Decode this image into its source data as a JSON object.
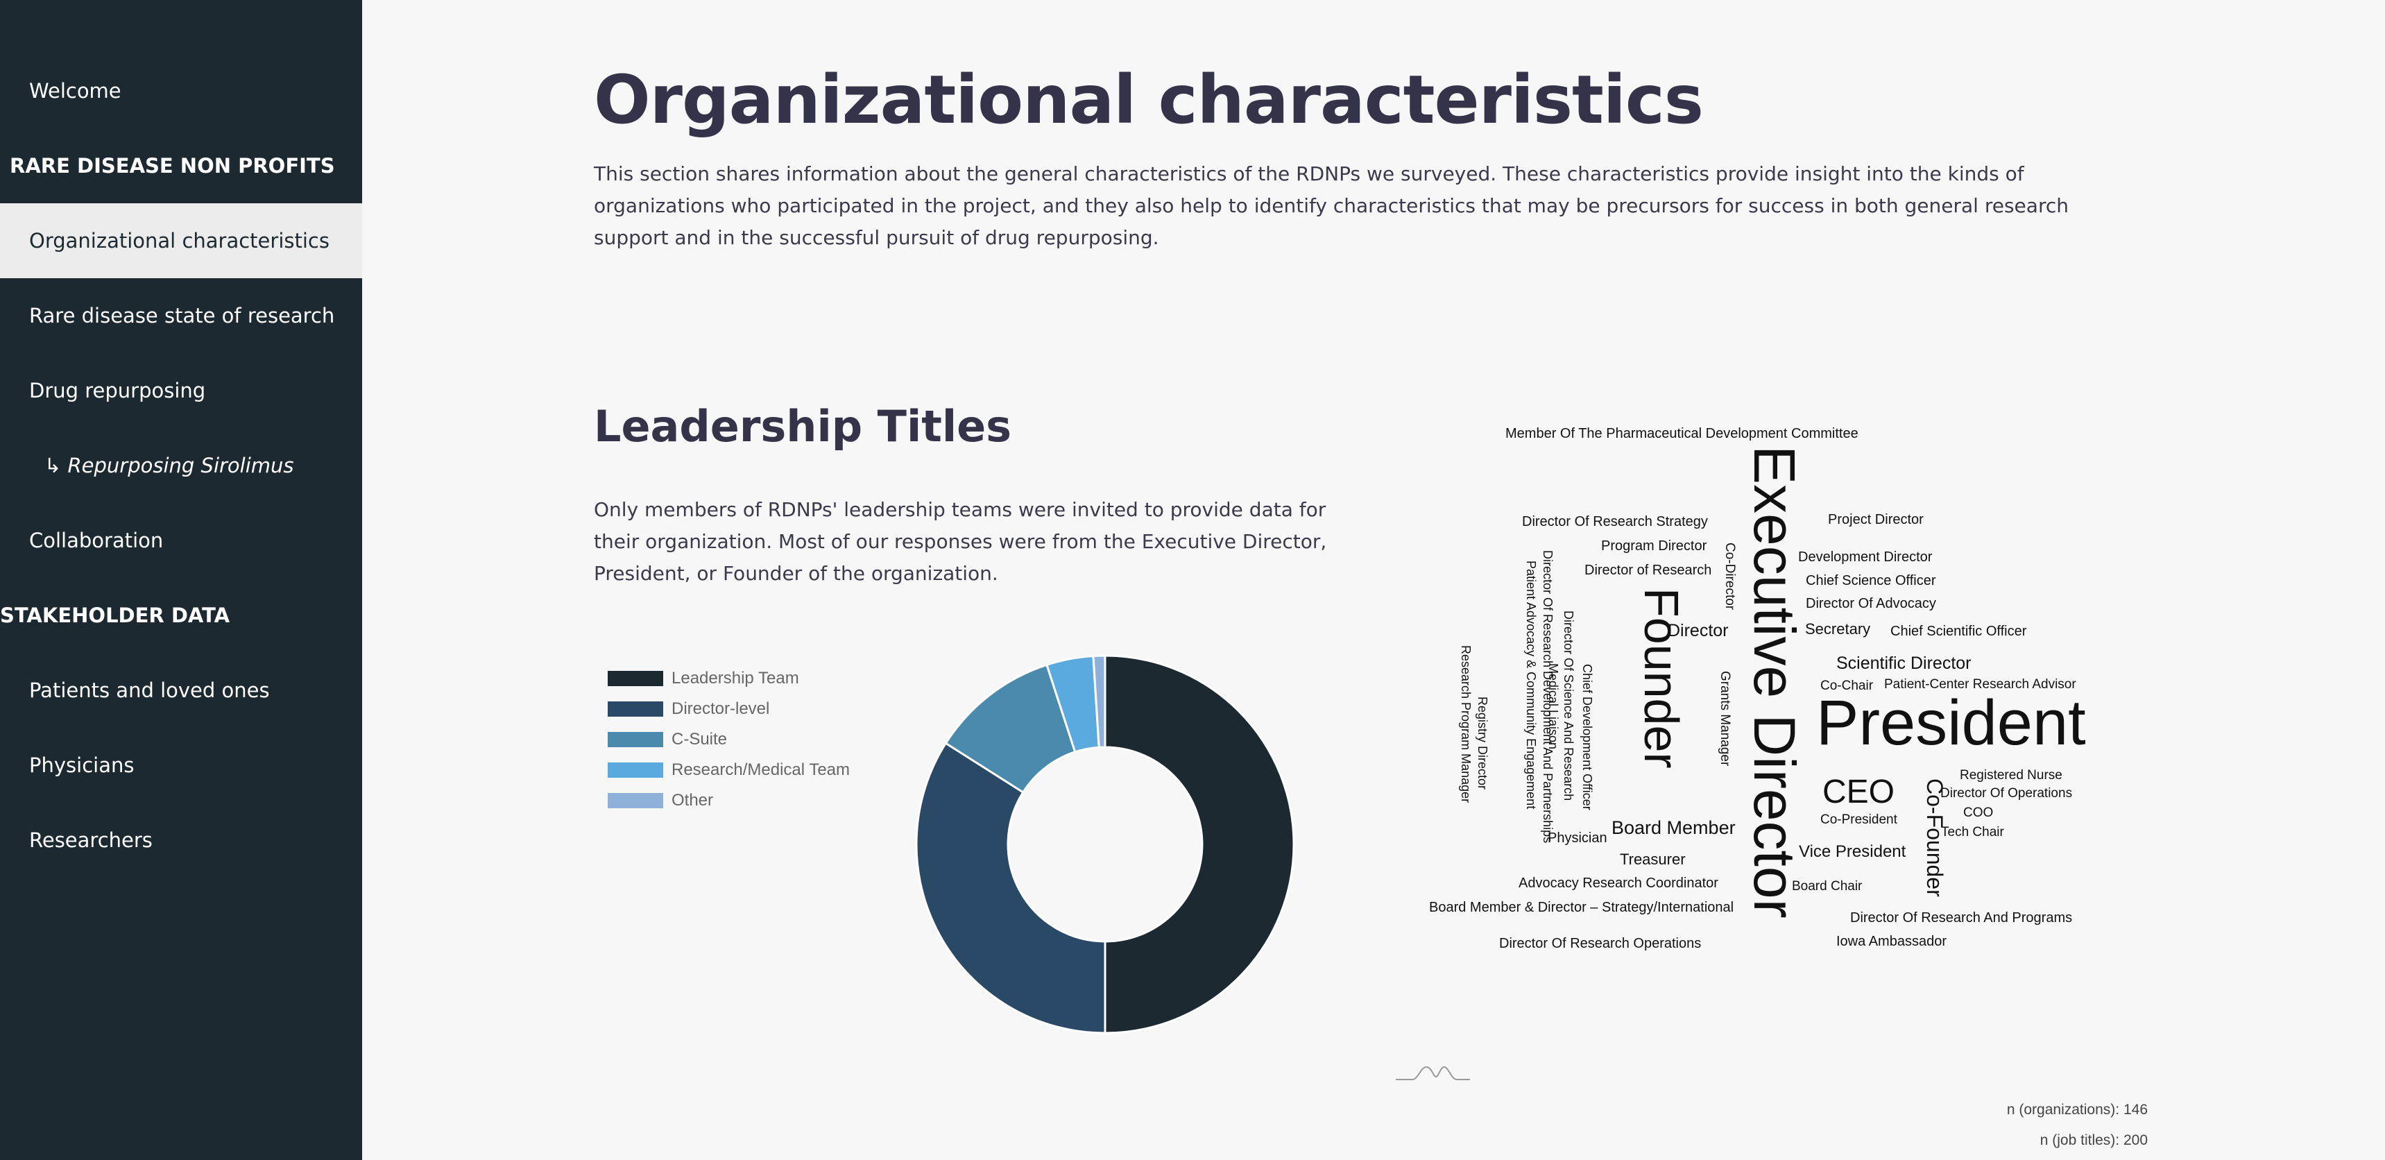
{
  "sidebar": {
    "items": [
      {
        "label": "Welcome"
      },
      {
        "label": "RARE DISEASE NON PROFITS"
      },
      {
        "label": "Organizational characteristics"
      },
      {
        "label": "Rare disease state of research"
      },
      {
        "label": "Drug repurposing"
      },
      {
        "label": "↳ Repurposing Sirolimus"
      },
      {
        "label": "Collaboration"
      },
      {
        "label": "STAKEHOLDER DATA"
      },
      {
        "label": "Patients and loved ones"
      },
      {
        "label": "Physicians"
      },
      {
        "label": "Researchers"
      }
    ],
    "active": "Organizational characteristics"
  },
  "main": {
    "title": "Organizational characteristics",
    "intro": "This section shares information about the general characteristics of the RDNPs we surveyed. These characteristics provide insight into the kinds of organizations who participated in the project, and they also help to identify characteristics that may be precursors for success in both general research support and in the successful pursuit of drug repurposing.",
    "section_title": "Leadership Titles",
    "section_desc": "Only members of RDNPs' leadership teams were invited to provide data for their organization. Most of our responses were from the Executive Director, President, or Founder of the organization.",
    "n_orgs": "n (organizations): 146",
    "n_titles": "n (job titles): 200"
  },
  "chart_data": [
    {
      "type": "pie",
      "title": "",
      "categories": [
        "Leadership Team",
        "Director-level",
        "C-Suite",
        "Research/Medical Team",
        "Other"
      ],
      "values": [
        50,
        34,
        11,
        4,
        1
      ],
      "colors": [
        "#1c2930",
        "#294966",
        "#4a8aad",
        "#5aaae0",
        "#8fb0d8"
      ],
      "legend": "left"
    },
    {
      "type": "wordcloud",
      "words": [
        {
          "text": "Member Of The Pharmaceutical Development Committee"
        },
        {
          "text": "Executive Director"
        },
        {
          "text": "Director Of Research Strategy"
        },
        {
          "text": "Project Director"
        },
        {
          "text": "Program Director"
        },
        {
          "text": "Co-Director"
        },
        {
          "text": "Development Director"
        },
        {
          "text": "Director of Research"
        },
        {
          "text": "Chief Science Officer"
        },
        {
          "text": "Director Of Advocacy"
        },
        {
          "text": "Founder"
        },
        {
          "text": "Director"
        },
        {
          "text": "Secretary"
        },
        {
          "text": "Chief Scientific Officer"
        },
        {
          "text": "Scientific Director"
        },
        {
          "text": "Co-Chair"
        },
        {
          "text": "Patient-Center Research Advisor"
        },
        {
          "text": "President"
        },
        {
          "text": "Registered Nurse"
        },
        {
          "text": "CEO"
        },
        {
          "text": "Director Of Operations"
        },
        {
          "text": "Co-Founder"
        },
        {
          "text": "COO"
        },
        {
          "text": "Co-President"
        },
        {
          "text": "Tech Chair"
        },
        {
          "text": "Board Member"
        },
        {
          "text": "Physician"
        },
        {
          "text": "Vice President"
        },
        {
          "text": "Treasurer"
        },
        {
          "text": "Advocacy Research Coordinator"
        },
        {
          "text": "Board Chair"
        },
        {
          "text": "Board Member & Director – Strategy/International"
        },
        {
          "text": "Director Of Research And Programs"
        },
        {
          "text": "Director Of Research Operations"
        },
        {
          "text": "Iowa Ambassador"
        },
        {
          "text": "Grants Manager"
        },
        {
          "text": "Director Of Research Development And Partnerships"
        },
        {
          "text": "Patient Advocacy & Community Engagement"
        },
        {
          "text": "Director Of Science And Research"
        },
        {
          "text": "Chief Development Officer"
        },
        {
          "text": "Medical Liaison"
        },
        {
          "text": "Registry Director"
        },
        {
          "text": "Research Program Manager"
        }
      ]
    }
  ]
}
